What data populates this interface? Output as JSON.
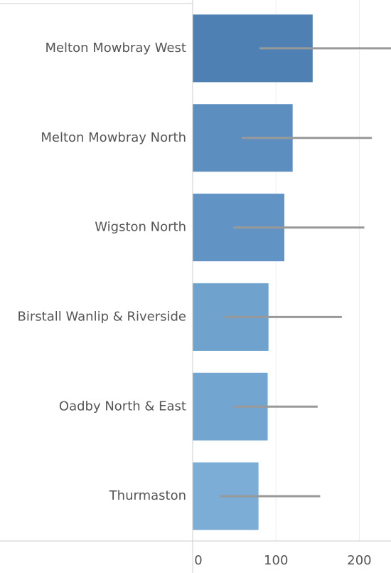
{
  "chart_data": {
    "type": "bar",
    "orientation": "horizontal",
    "categories": [
      "Melton Mowbray West",
      "Melton Mowbray North",
      "Wigston North",
      "Birstall Wanlip & Riverside",
      "Oadby North & East",
      "Thurmaston"
    ],
    "values": [
      144,
      120,
      110,
      91,
      90,
      79
    ],
    "error_low": [
      80,
      59,
      49,
      38,
      49,
      33
    ],
    "error_high": [
      240,
      215,
      206,
      179,
      150,
      153
    ],
    "colors": [
      "#4e80b3",
      "#5c8ebf",
      "#6194c4",
      "#6fa2cd",
      "#72a6d0",
      "#7badd6"
    ],
    "error_color": "#999999",
    "xlim": [
      0,
      238
    ],
    "xticks": [
      0,
      100,
      200
    ],
    "grid": true
  }
}
